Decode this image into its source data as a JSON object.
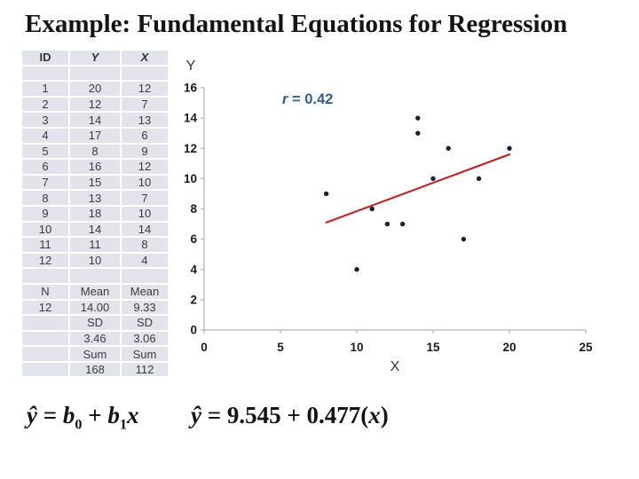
{
  "title": "Example: Fundamental Equations for Regression",
  "table": {
    "headers": [
      "ID",
      "Y",
      "X"
    ],
    "rows": [
      [
        "1",
        "20",
        "12"
      ],
      [
        "2",
        "12",
        "7"
      ],
      [
        "3",
        "14",
        "13"
      ],
      [
        "4",
        "17",
        "6"
      ],
      [
        "5",
        "8",
        "9"
      ],
      [
        "6",
        "16",
        "12"
      ],
      [
        "7",
        "15",
        "10"
      ],
      [
        "8",
        "13",
        "7"
      ],
      [
        "9",
        "18",
        "10"
      ],
      [
        "10",
        "14",
        "14"
      ],
      [
        "11",
        "11",
        "8"
      ],
      [
        "12",
        "10",
        "4"
      ]
    ],
    "summary": [
      [
        "N",
        "Mean",
        "Mean"
      ],
      [
        "12",
        "14.00",
        "9.33"
      ],
      [
        "",
        "SD",
        "SD"
      ],
      [
        "",
        "3.46",
        "3.06"
      ],
      [
        "",
        "Sum",
        "Sum"
      ],
      [
        "",
        "168",
        "112"
      ]
    ]
  },
  "chart_data": {
    "type": "scatter",
    "title": "",
    "xlabel": "X",
    "ylabel": "Y",
    "xlim": [
      0,
      25
    ],
    "ylim": [
      0,
      16
    ],
    "xticks": [
      0,
      5,
      10,
      15,
      20,
      25
    ],
    "yticks": [
      0,
      2,
      4,
      6,
      8,
      10,
      12,
      14,
      16
    ],
    "grid": false,
    "legend": false,
    "annotation": {
      "prefix": "r",
      "rest": " = 0.42",
      "color": "#365F91"
    },
    "points": [
      [
        14,
        14
      ],
      [
        14,
        13
      ],
      [
        16,
        12
      ],
      [
        20,
        12
      ],
      [
        15,
        10
      ],
      [
        18,
        10
      ],
      [
        8,
        9
      ],
      [
        11,
        8
      ],
      [
        12,
        7
      ],
      [
        13,
        7
      ],
      [
        17,
        6
      ],
      [
        10,
        4
      ]
    ],
    "point_color": "#1C2134",
    "trend_line": {
      "x1": 8,
      "y1": 7.1,
      "x2": 20,
      "y2": 11.6,
      "color": "#C22525"
    },
    "axis_color": "#BFBFC7",
    "tick_label_color": "#1A1A1A",
    "axis_title_color": "#333333"
  },
  "formulas": {
    "general": {
      "yhat": "ŷ",
      "eq": " = ",
      "b1": "b",
      "sub0": "0",
      "plus": " + ",
      "b2": "b",
      "sub1": "1",
      "x": "x"
    },
    "fitted": {
      "yhat": "ŷ",
      "eq": " = ",
      "value": "9.545 + 0.477(",
      "x": "x",
      "close": ")"
    }
  }
}
